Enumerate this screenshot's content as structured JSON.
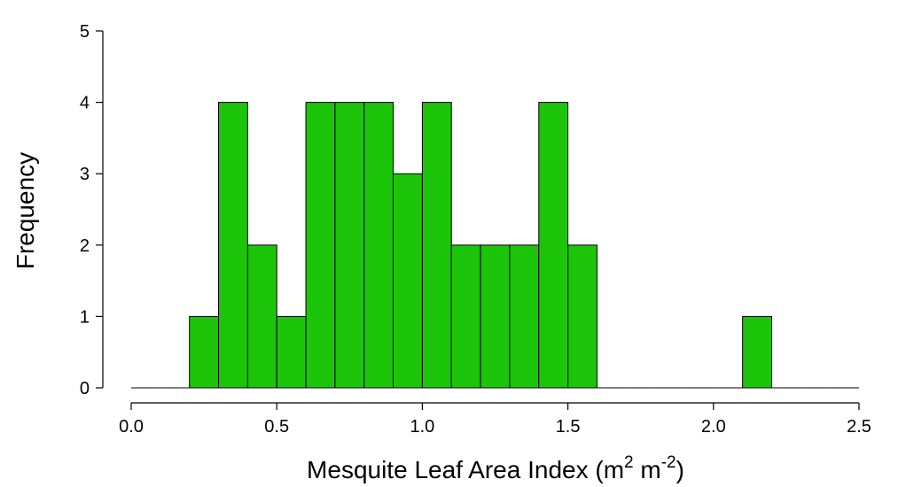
{
  "chart_data": {
    "type": "bar",
    "subtype": "histogram",
    "title": "",
    "xlabel_main": "Mesquite Leaf Area Index (m",
    "xlabel_sup1": "2",
    "xlabel_mid": " m",
    "xlabel_sup2": "-2",
    "xlabel_end": ")",
    "ylabel": "Frequency",
    "xlim": [
      0.0,
      2.5
    ],
    "ylim": [
      0,
      5
    ],
    "xticks": [
      0.0,
      0.5,
      1.0,
      1.5,
      2.0,
      2.5
    ],
    "xtick_labels": [
      "0.0",
      "0.5",
      "1.0",
      "1.5",
      "2.0",
      "2.5"
    ],
    "yticks": [
      0,
      1,
      2,
      3,
      4,
      5
    ],
    "ytick_labels": [
      "0",
      "1",
      "2",
      "3",
      "4",
      "5"
    ],
    "bin_width": 0.1,
    "bin_starts": [
      0.0,
      0.1,
      0.2,
      0.3,
      0.4,
      0.5,
      0.6,
      0.7,
      0.8,
      0.9,
      1.0,
      1.1,
      1.2,
      1.3,
      1.4,
      1.5,
      1.6,
      1.7,
      1.8,
      1.9,
      2.0,
      2.1,
      2.2,
      2.3,
      2.4
    ],
    "values": [
      0,
      0,
      1,
      4,
      2,
      1,
      4,
      4,
      4,
      3,
      4,
      2,
      2,
      2,
      4,
      2,
      0,
      0,
      0,
      0,
      0,
      1,
      0,
      0,
      0
    ],
    "bar_color": "#1cc40a",
    "grid": false,
    "legend": "none"
  }
}
